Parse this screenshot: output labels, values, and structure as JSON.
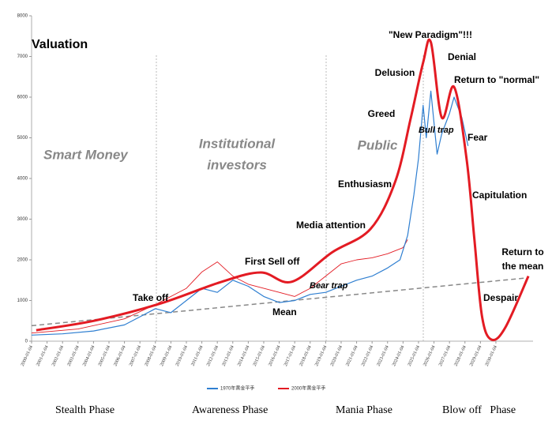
{
  "chart_data": {
    "type": "line",
    "xlim": [
      2000,
      2032.4
    ],
    "ylim": [
      0,
      8000
    ],
    "yticks": [
      0,
      1000,
      2000,
      3000,
      4000,
      5000,
      6000,
      7000,
      8000
    ],
    "xticks": [
      {
        "value": 2000,
        "label": "2000-01-04"
      },
      {
        "value": 2001,
        "label": "2001-01-04"
      },
      {
        "value": 2002,
        "label": "2002-01-04"
      },
      {
        "value": 2003,
        "label": "2003-01-04"
      },
      {
        "value": 2004,
        "label": "2004-01-04"
      },
      {
        "value": 2005,
        "label": "2005-01-04"
      },
      {
        "value": 2006,
        "label": "2006-01-04"
      },
      {
        "value": 2007,
        "label": "2007-01-04"
      },
      {
        "value": 2008,
        "label": "2008-01-04"
      },
      {
        "value": 2009,
        "label": "2009-01-04"
      },
      {
        "value": 2010,
        "label": "2010-01-04"
      },
      {
        "value": 2011,
        "label": "2011-01-04"
      },
      {
        "value": 2012,
        "label": "2012-01-04"
      },
      {
        "value": 2013,
        "label": "2013-01-04"
      },
      {
        "value": 2014,
        "label": "2014-01-04"
      },
      {
        "value": 2015,
        "label": "2015-01-04"
      },
      {
        "value": 2016,
        "label": "2016-01-04"
      },
      {
        "value": 2017,
        "label": "2017-01-04"
      },
      {
        "value": 2018,
        "label": "2018-01-04"
      },
      {
        "value": 2019,
        "label": "2019-01-04"
      },
      {
        "value": 2020,
        "label": "2020-01-04"
      },
      {
        "value": 2021,
        "label": "2021-01-04"
      },
      {
        "value": 2022,
        "label": "2022-01-04"
      },
      {
        "value": 2023,
        "label": "2023-01-04"
      },
      {
        "value": 2024,
        "label": "2024-01-04"
      },
      {
        "value": 2025,
        "label": "2025-01-04"
      },
      {
        "value": 2026,
        "label": "2026-01-04"
      },
      {
        "value": 2027,
        "label": "2027-01-04"
      },
      {
        "value": 2028,
        "label": "2028-01-04"
      },
      {
        "value": 2029,
        "label": "2029-01-04"
      },
      {
        "value": 2030,
        "label": "2030-01-04"
      }
    ],
    "series": [
      {
        "name": "1970年黄金平手",
        "color": "#2f7fd1",
        "x": [
          2000,
          2002,
          2004,
          2006,
          2007,
          2008,
          2009,
          2010,
          2011,
          2012,
          2013,
          2014,
          2015,
          2016,
          2017,
          2018,
          2019,
          2020,
          2021,
          2022,
          2023,
          2023.8,
          2024.3,
          2024.7,
          2025,
          2025.3,
          2025.5,
          2025.8,
          2026.2,
          2026.5,
          2027,
          2027.3,
          2027.8,
          2028.2
        ],
        "values": [
          150,
          180,
          250,
          400,
          600,
          800,
          700,
          1000,
          1300,
          1200,
          1500,
          1350,
          1100,
          950,
          1000,
          1150,
          1200,
          1350,
          1500,
          1600,
          1800,
          2000,
          2600,
          3600,
          4500,
          5800,
          5000,
          6150,
          4600,
          5100,
          5600,
          6000,
          5500,
          4800
        ]
      },
      {
        "name": "2000年黄金平手",
        "color": "#e31b23",
        "x": [
          2000,
          2003,
          2006,
          2008,
          2010,
          2011,
          2012,
          2013,
          2014,
          2015,
          2016,
          2017,
          2018,
          2019,
          2020,
          2021,
          2022,
          2023,
          2024,
          2024.3
        ],
        "values": [
          200,
          300,
          550,
          900,
          1300,
          1700,
          1950,
          1600,
          1400,
          1300,
          1200,
          1100,
          1300,
          1600,
          1900,
          2000,
          2050,
          2150,
          2300,
          2500
        ]
      }
    ],
    "curve": {
      "color": "#e31b23",
      "x": [
        2000.3,
        2004,
        2008.2,
        2012.2,
        2014.8,
        2016.8,
        2019.4,
        2021.9,
        2023.5,
        2024.5,
        2025.3,
        2025.8,
        2026.5,
        2027.3,
        2028.1,
        2028.6,
        2029.1,
        2029.7,
        2030.6,
        2032.1
      ],
      "values": [
        270,
        500,
        910,
        1450,
        1690,
        1460,
        2180,
        2760,
        3930,
        5490,
        6850,
        7350,
        5500,
        6250,
        4500,
        2550,
        620,
        40,
        330,
        1600
      ]
    },
    "mean_line": {
      "color": "#888888",
      "x": [
        2000,
        2032.1
      ],
      "values": [
        380,
        1560
      ]
    },
    "annotations": [
      "Valuation",
      "Smart Money",
      "Institutional",
      "investors",
      "Public",
      "\"New Paradigm\"!!!",
      "Delusion",
      "Denial",
      "Return to \"normal\"",
      "Greed",
      "Bull trap",
      "Fear",
      "Enthusiasm",
      "Capitulation",
      "Media attention",
      "First Sell off",
      "Bear trap",
      "Take off",
      "Mean",
      "Return to",
      "the mean",
      "Despair"
    ],
    "phases": [
      "Stealth Phase",
      "Awareness Phase",
      "Mania Phase",
      "Blow off   Phase"
    ]
  }
}
